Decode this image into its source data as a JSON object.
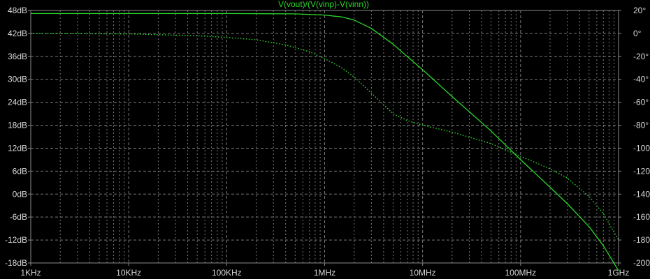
{
  "chart_data": {
    "type": "line",
    "title": "V(vout)/(V(vinp)-V(vinn))",
    "x_scale": "log",
    "xlim": [
      1000,
      1000000000
    ],
    "x_ticks": [
      1000,
      10000,
      100000,
      1000000,
      10000000,
      100000000,
      1000000000
    ],
    "x_tick_labels": [
      "1KHz",
      "10KHz",
      "100KHz",
      "1MHz",
      "10MHz",
      "100MHz",
      "1GHz"
    ],
    "y_left": {
      "unit": "dB",
      "ylim": [
        -18,
        48
      ],
      "ticks": [
        48,
        42,
        36,
        30,
        24,
        18,
        12,
        6,
        0,
        -6,
        -12,
        -18
      ],
      "tick_labels": [
        "48dB",
        "42dB",
        "36dB",
        "30dB",
        "24dB",
        "18dB",
        "12dB",
        "6dB",
        "0dB",
        "-6dB",
        "-12dB",
        "-18dB"
      ]
    },
    "y_right": {
      "unit": "degrees",
      "ylim": [
        -200,
        20
      ],
      "ticks": [
        20,
        0,
        -20,
        -40,
        -60,
        -80,
        -100,
        -120,
        -140,
        -160,
        -180,
        -200
      ],
      "tick_labels": [
        "20°",
        "0°",
        "-20°",
        "-40°",
        "-60°",
        "-80°",
        "-100°",
        "-120°",
        "-140°",
        "-160°",
        "-180°",
        "-200°"
      ]
    },
    "grid": true,
    "series": [
      {
        "role": "magnitude",
        "axis": "left",
        "style": "solid",
        "color": "#2bd62b",
        "x": [
          1000,
          100000,
          500000,
          1000000,
          1500000,
          2000000,
          3000000,
          5000000,
          7000000,
          10000000,
          20000000,
          50000000,
          100000000,
          200000000,
          300000000,
          500000000,
          700000000,
          1000000000
        ],
        "y": [
          47.2,
          47.2,
          47.1,
          46.8,
          46.3,
          45.5,
          43.3,
          39.2,
          35.9,
          32.5,
          25.5,
          16.5,
          9.0,
          1.8,
          -2.5,
          -8.5,
          -13.5,
          -20.0
        ]
      },
      {
        "role": "phase",
        "axis": "right",
        "style": "dotted",
        "color": "#2bd62b",
        "x": [
          1000,
          10000,
          50000,
          100000,
          200000,
          400000,
          700000,
          1000000,
          1500000,
          2000000,
          3000000,
          5000000,
          7000000,
          10000000,
          20000000,
          50000000,
          100000000,
          200000000,
          300000000,
          500000000,
          700000000,
          1000000000
        ],
        "y": [
          0,
          -0.5,
          -2.0,
          -3.5,
          -5.5,
          -10,
          -16,
          -22,
          -30,
          -38,
          -52,
          -70,
          -76,
          -80,
          -86,
          -96,
          -107,
          -118,
          -126,
          -142,
          -157,
          -180
        ]
      }
    ]
  }
}
